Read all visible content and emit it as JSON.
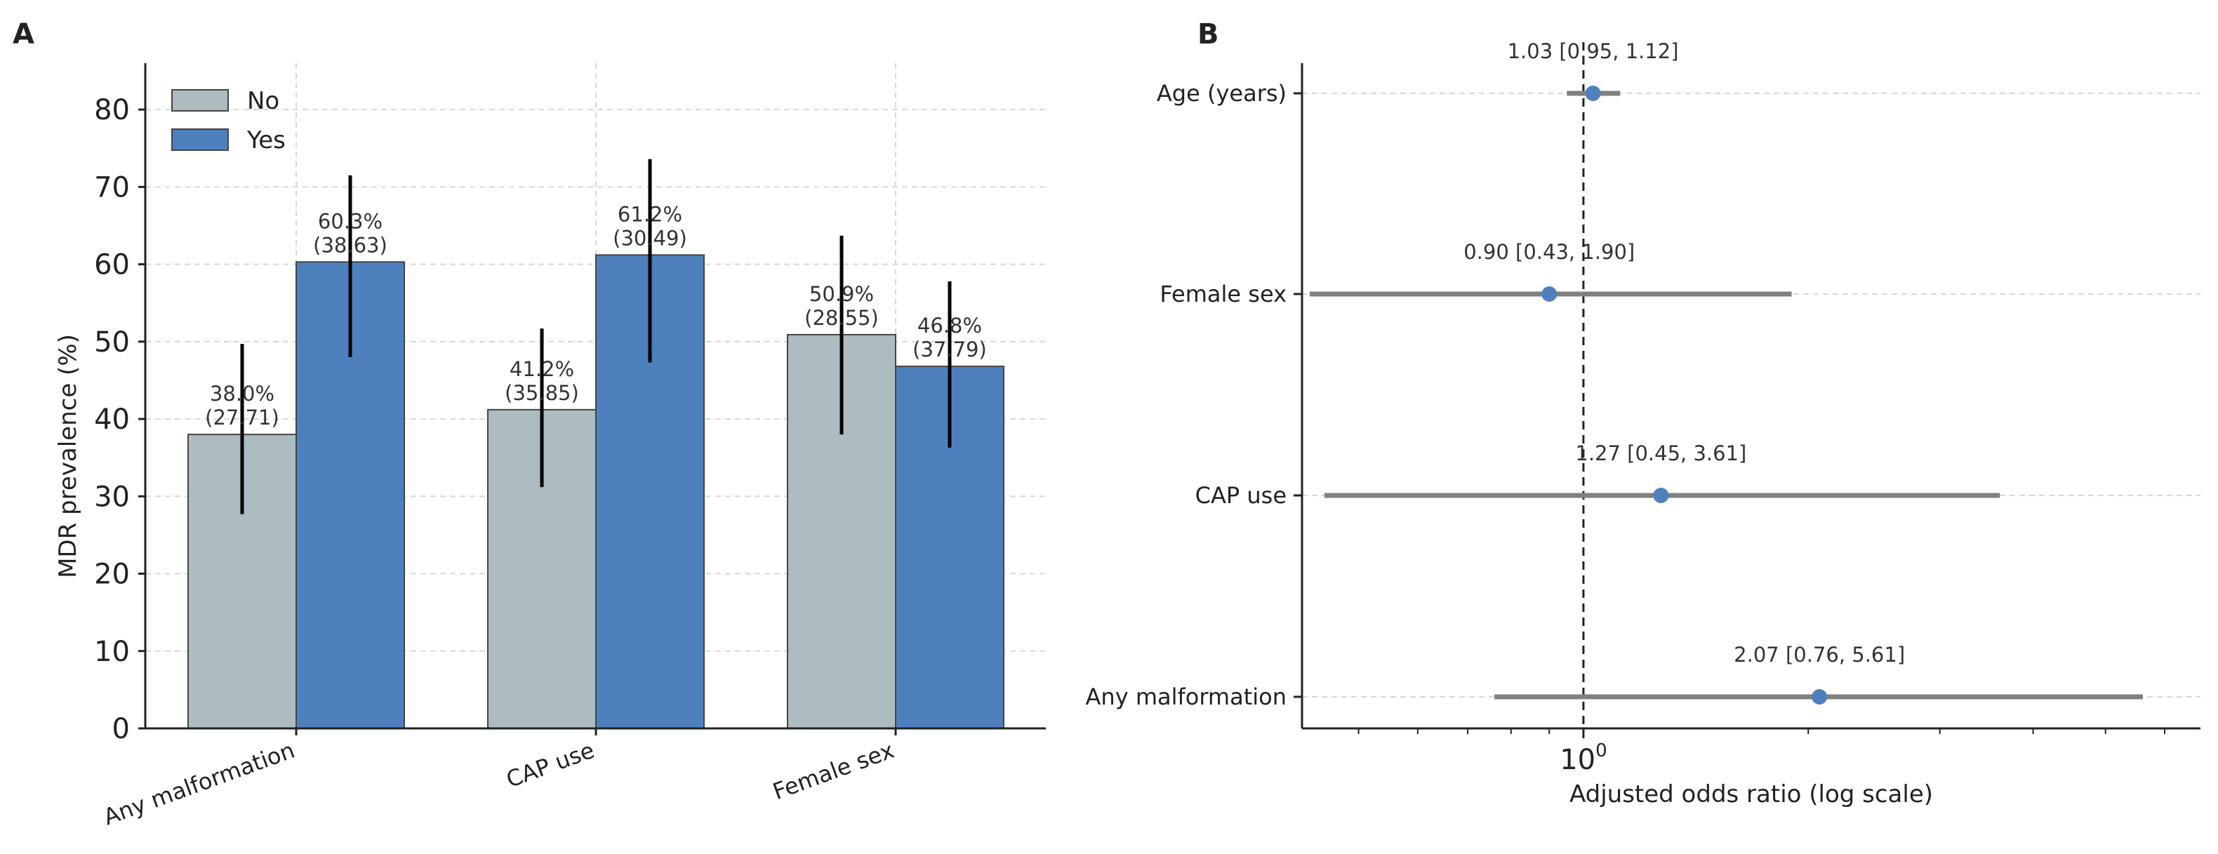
{
  "panels": {
    "a": {
      "letter": "A"
    },
    "b": {
      "letter": "B"
    }
  },
  "chart_data": [
    {
      "panel": "A",
      "type": "bar",
      "ylabel": "MDR prevalence (%)",
      "xlabel": "",
      "ylim": [
        0,
        86
      ],
      "yticks": [
        0,
        10,
        20,
        30,
        40,
        50,
        60,
        70,
        80
      ],
      "grid": true,
      "legend": "top-left",
      "categories": [
        "Any malformation",
        "CAP use",
        "Female sex"
      ],
      "series": [
        {
          "name": "No",
          "color": "#adbcc0",
          "values": [
            38.0,
            41.2,
            50.9
          ],
          "err_low": [
            27.7,
            31.2,
            38.0
          ],
          "err_high": [
            49.7,
            51.7,
            63.7
          ],
          "labels": [
            [
              "38.0%",
              "(27.71)"
            ],
            [
              "41.2%",
              "(35.85)"
            ],
            [
              "50.9%",
              "(28.55)"
            ]
          ]
        },
        {
          "name": "Yes",
          "color": "#4f80be",
          "values": [
            60.3,
            61.2,
            46.8
          ],
          "err_low": [
            48.0,
            47.3,
            36.3
          ],
          "err_high": [
            71.5,
            73.6,
            57.8
          ],
          "labels": [
            [
              "60.3%",
              "(38.63)"
            ],
            [
              "61.2%",
              "(30.49)"
            ],
            [
              "46.8%",
              "(37.79)"
            ]
          ]
        }
      ]
    },
    {
      "panel": "B",
      "type": "scatter",
      "xlabel": "Adjusted odds ratio (log scale)",
      "ylabel": "",
      "xscale": "log",
      "xlim": [
        0.42,
        6.7
      ],
      "reference_line": 1.0,
      "xtick_labels": [
        {
          "base": "10",
          "exp": "0"
        }
      ],
      "grid": true,
      "point_color": "#4f80be",
      "interval_color": "#808080",
      "rows": [
        {
          "name": "Age (years)",
          "or": 1.03,
          "lo": 0.95,
          "hi": 1.12,
          "label": "1.03 [0.95, 1.12]"
        },
        {
          "name": "Female sex",
          "or": 0.9,
          "lo": 0.43,
          "hi": 1.9,
          "label": "0.90 [0.43, 1.90]"
        },
        {
          "name": "CAP use",
          "or": 1.27,
          "lo": 0.45,
          "hi": 3.61,
          "label": "1.27 [0.45, 3.61]"
        },
        {
          "name": "Any malformation",
          "or": 2.07,
          "lo": 0.76,
          "hi": 5.61,
          "label": "2.07 [0.76, 5.61]"
        }
      ]
    }
  ]
}
